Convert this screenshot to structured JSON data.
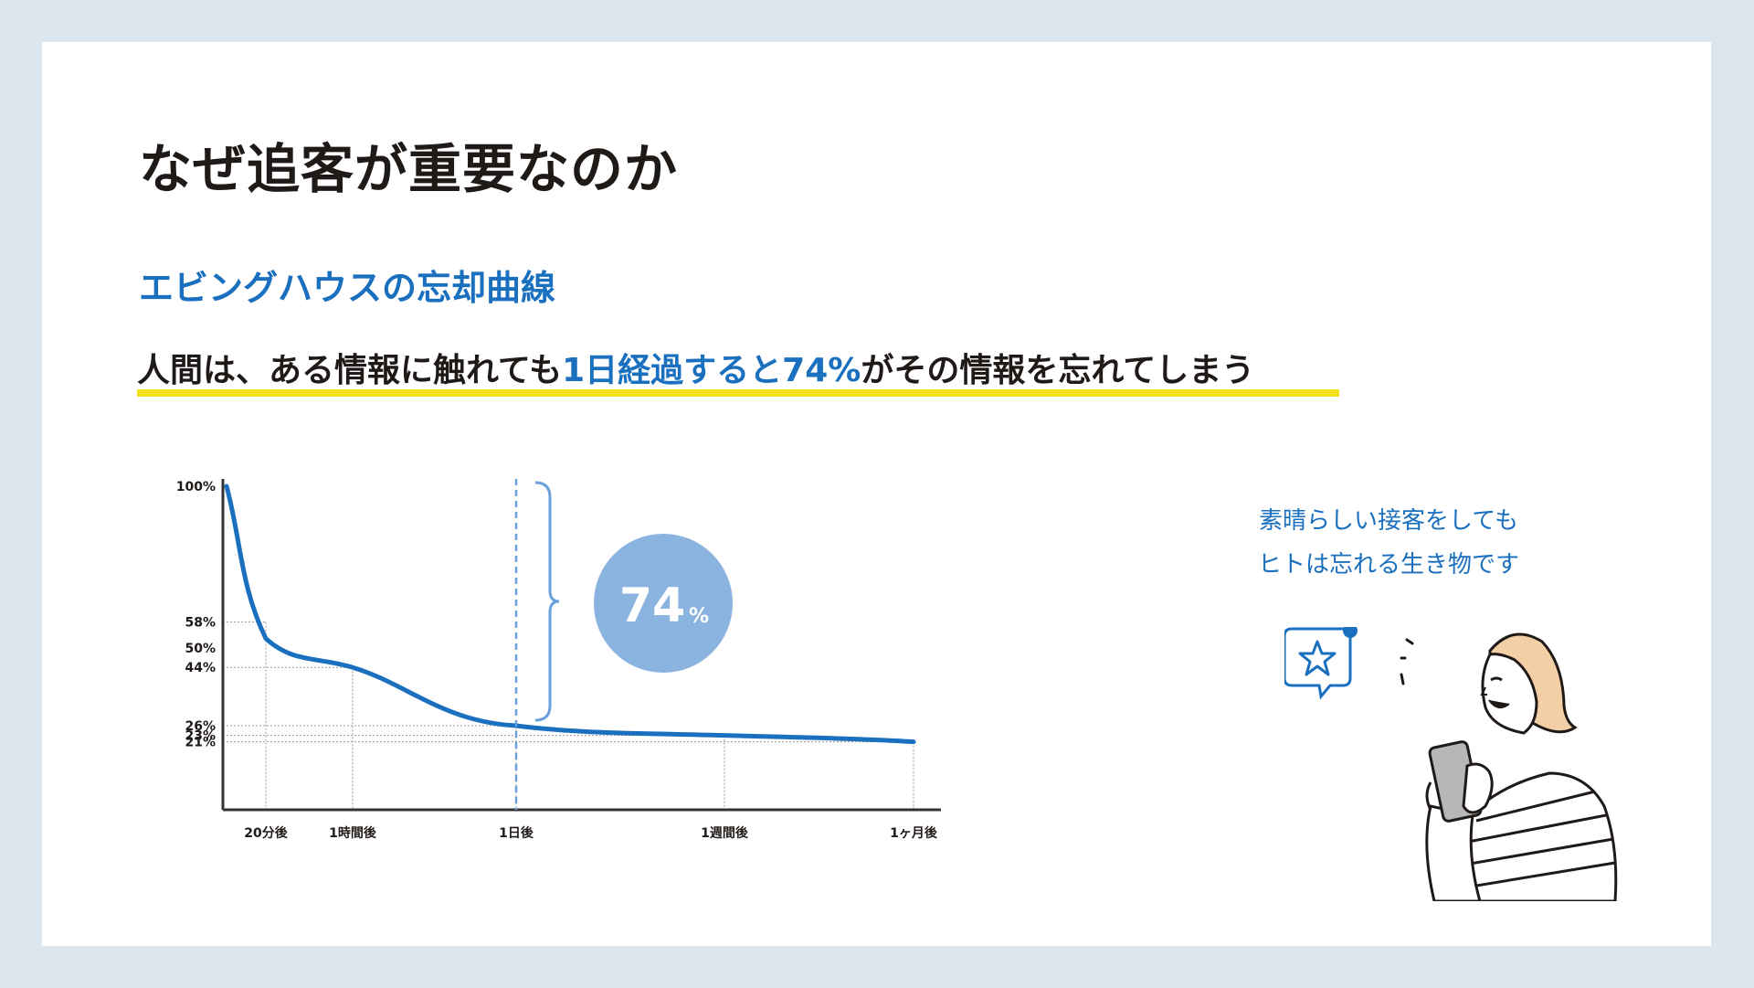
{
  "slide": {
    "title": "なぜ追客が重要なのか",
    "subtitle": "エビングハウスの忘却曲線",
    "headline": {
      "part1": "人間は、ある情報に触れても",
      "highlight": "1日経過すると74%",
      "part2": "がその情報を忘れてしまう"
    }
  },
  "colors": {
    "accent": "#1a6fbf",
    "underline": "#f6e21a",
    "bubble": "#8bb3e0",
    "text": "#1f1a17"
  },
  "chart_data": {
    "type": "line",
    "title": "",
    "xlabel": "",
    "ylabel": "",
    "ylim": [
      0,
      100
    ],
    "x_ticks": [
      "20分後",
      "1時間後",
      "1日後",
      "1週間後",
      "1ヶ月後"
    ],
    "y_ticks": [
      "100%",
      "58%",
      "50%",
      "44%",
      "26%",
      "23%",
      "21%"
    ],
    "series": [
      {
        "values": [
          {
            "x": "20分後",
            "y": 58
          },
          {
            "x": "1時間後",
            "y": 44
          },
          {
            "x": "1日後",
            "y": 26
          },
          {
            "x": "1週間後",
            "y": 23
          },
          {
            "x": "1ヶ月後",
            "y": 21
          }
        ]
      }
    ],
    "start_value": 100,
    "annotation": {
      "value": "74",
      "unit": "%",
      "at": "1日後"
    },
    "grid": true
  },
  "illustration": {
    "caption_line1": "素晴らしい接客をしても",
    "caption_line2": "ヒトは忘れる生き物です",
    "icons": [
      "star-chat-icon",
      "woman-with-smartphone"
    ]
  }
}
